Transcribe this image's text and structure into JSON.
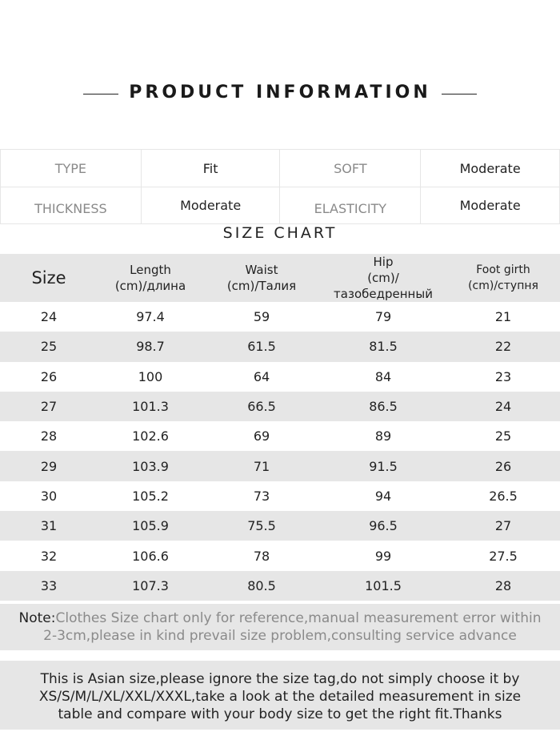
{
  "header": {
    "title": "PRODUCT INFORMATION"
  },
  "info": {
    "rows": [
      {
        "label1": "TYPE",
        "value1": "Fit",
        "label2": "SOFT",
        "value2": "Moderate"
      },
      {
        "label1": "THICKNESS",
        "value1": "Moderate",
        "label2": "ELASTICITY",
        "value2": "Moderate"
      }
    ]
  },
  "size_chart": {
    "title": "SIZE CHART",
    "columns": [
      {
        "line1": "Size",
        "line2": ""
      },
      {
        "line1": "Length",
        "line2": "(cm)/длина"
      },
      {
        "line1": "Waist",
        "line2": "(cm)/Талия"
      },
      {
        "line1": "Hip",
        "line2": "(cm)/тазобедренный"
      },
      {
        "line1": "Foot girth",
        "line2": "(cm)/ступня"
      }
    ],
    "rows": [
      [
        "24",
        "97.4",
        "59",
        "79",
        "21"
      ],
      [
        "25",
        "98.7",
        "61.5",
        "81.5",
        "22"
      ],
      [
        "26",
        "100",
        "64",
        "84",
        "23"
      ],
      [
        "27",
        "101.3",
        "66.5",
        "86.5",
        "24"
      ],
      [
        "28",
        "102.6",
        "69",
        "89",
        "25"
      ],
      [
        "29",
        "103.9",
        "71",
        "91.5",
        "26"
      ],
      [
        "30",
        "105.2",
        "73",
        "94",
        "26.5"
      ],
      [
        "31",
        "105.9",
        "75.5",
        "96.5",
        "27"
      ],
      [
        "32",
        "106.6",
        "78",
        "99",
        "27.5"
      ],
      [
        "33",
        "107.3",
        "80.5",
        "101.5",
        "28"
      ]
    ]
  },
  "note": {
    "label": "Note:",
    "text_line1": "Clothes Size chart only for reference,manual measurement error within",
    "text_line2": "2-3cm,please in kind prevail size problem,consulting service advance"
  },
  "asian_notice": {
    "line1": "This is Asian size,please ignore the size tag,do not simply choose it by",
    "line2": "XS/S/M/L/XL/XXL/XXXL,take a look at the detailed measurement in size",
    "line3": "table and compare with your body size to get the right fit.Thanks"
  },
  "colors": {
    "band_gray": "#e6e6e6",
    "label_gray": "#8a8a8a",
    "text_dark": "#222222"
  }
}
